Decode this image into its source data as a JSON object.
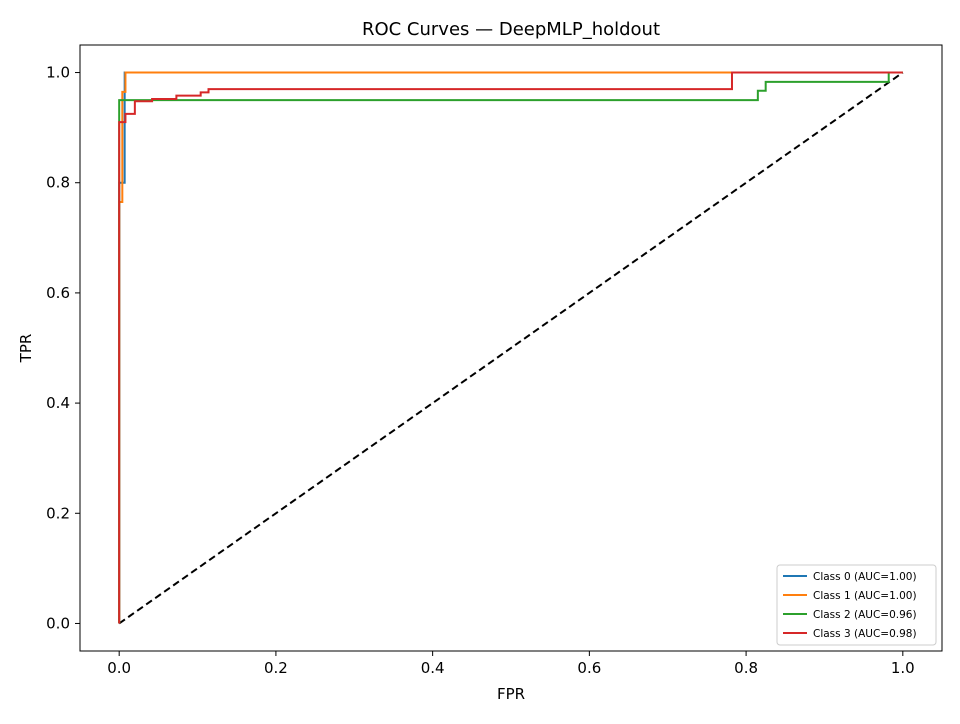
{
  "chart_data": {
    "type": "line",
    "title": "ROC Curves — DeepMLP_holdout",
    "xlabel": "FPR",
    "ylabel": "TPR",
    "xlim": [
      -0.05,
      1.05
    ],
    "ylim": [
      -0.05,
      1.05
    ],
    "x_ticks": [
      "0.0",
      "0.2",
      "0.4",
      "0.6",
      "0.8",
      "1.0"
    ],
    "y_ticks": [
      "0.0",
      "0.2",
      "0.4",
      "0.6",
      "0.8",
      "1.0"
    ],
    "grid": false,
    "legend_position": "bottom-right",
    "series": [
      {
        "name": "Class 0 (AUC=1.00)",
        "color": "#1f77b4",
        "points": [
          [
            0,
            0
          ],
          [
            0,
            0.8
          ],
          [
            0.007,
            0.8
          ],
          [
            0.007,
            0.96
          ],
          [
            0.007,
            1.0
          ],
          [
            1.0,
            1.0
          ]
        ]
      },
      {
        "name": "Class 1 (AUC=1.00)",
        "color": "#ff7f0e",
        "points": [
          [
            0,
            0
          ],
          [
            0,
            0.765
          ],
          [
            0.004,
            0.765
          ],
          [
            0.004,
            0.965
          ],
          [
            0.008,
            0.965
          ],
          [
            0.008,
            1.0
          ],
          [
            1.0,
            1.0
          ]
        ]
      },
      {
        "name": "Class 2 (AUC=0.96)",
        "color": "#2ca02c",
        "points": [
          [
            0,
            0
          ],
          [
            0,
            0.95
          ],
          [
            0.815,
            0.95
          ],
          [
            0.815,
            0.967
          ],
          [
            0.825,
            0.967
          ],
          [
            0.825,
            0.983
          ],
          [
            0.982,
            0.983
          ],
          [
            0.982,
            1.0
          ],
          [
            1.0,
            1.0
          ]
        ]
      },
      {
        "name": "Class 3 (AUC=0.98)",
        "color": "#d62728",
        "points": [
          [
            0,
            0
          ],
          [
            0,
            0.91
          ],
          [
            0.008,
            0.91
          ],
          [
            0.008,
            0.925
          ],
          [
            0.02,
            0.925
          ],
          [
            0.02,
            0.948
          ],
          [
            0.042,
            0.948
          ],
          [
            0.042,
            0.952
          ],
          [
            0.073,
            0.952
          ],
          [
            0.073,
            0.958
          ],
          [
            0.104,
            0.958
          ],
          [
            0.104,
            0.964
          ],
          [
            0.114,
            0.964
          ],
          [
            0.114,
            0.97
          ],
          [
            0.782,
            0.97
          ],
          [
            0.782,
            1.0
          ],
          [
            1.0,
            1.0
          ]
        ]
      }
    ],
    "reference_line": {
      "color": "#000000",
      "style": "dashed",
      "points": [
        [
          0,
          0
        ],
        [
          1,
          1
        ]
      ]
    }
  }
}
